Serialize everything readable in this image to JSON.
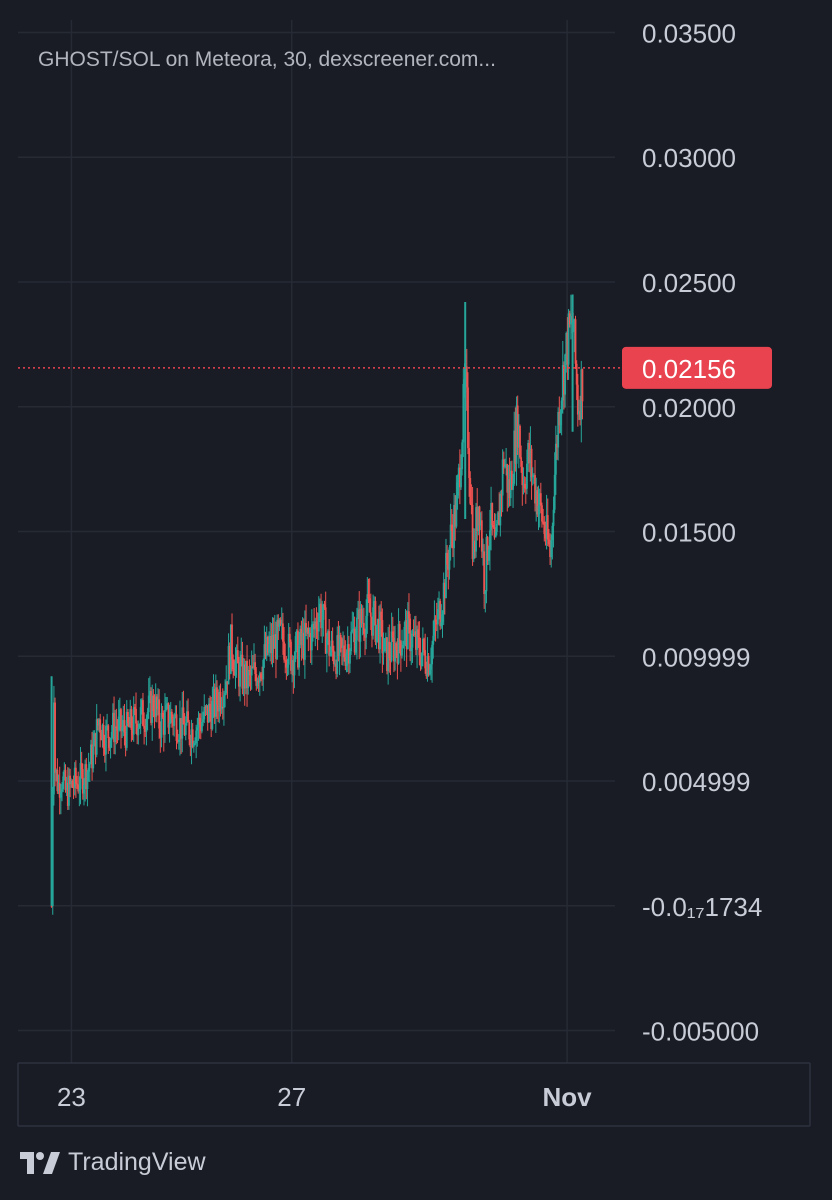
{
  "chart_data": {
    "type": "candlestick",
    "title": "GHOST/SOL on Meteora, 30, dexscreener.com...",
    "y_ticks": [
      "0.03500",
      "0.03000",
      "0.02500",
      "0.02000",
      "0.01500",
      "0.009999",
      "0.004999",
      "-0.0₁₇1734",
      "-0.005000"
    ],
    "y_tick_values": [
      0.035,
      0.03,
      0.025,
      0.02,
      0.015,
      0.01,
      0.005,
      0.0,
      -0.005
    ],
    "ylim": [
      -0.0063,
      0.0355
    ],
    "x_ticks": [
      "23",
      "27",
      "Nov"
    ],
    "x_tick_values": [
      23,
      27,
      32
    ],
    "x_highlight": "Nov",
    "xlim": [
      22.03,
      32.87
    ],
    "last_price": 0.02156,
    "last_price_label": "0.02156",
    "up_color": "#26a69a",
    "down_color": "#ef5350",
    "price_line_color": "#e8434f",
    "series_points": [
      [
        22.64,
        0.0
      ],
      [
        22.68,
        0.0092
      ],
      [
        22.7,
        0.0055
      ],
      [
        22.76,
        0.0048
      ],
      [
        22.82,
        0.0052
      ],
      [
        22.9,
        0.0045
      ],
      [
        23.0,
        0.0048
      ],
      [
        23.15,
        0.005
      ],
      [
        23.3,
        0.0055
      ],
      [
        23.4,
        0.0062
      ],
      [
        23.5,
        0.0075
      ],
      [
        23.6,
        0.0068
      ],
      [
        23.8,
        0.0072
      ],
      [
        24.0,
        0.007
      ],
      [
        24.2,
        0.0075
      ],
      [
        24.4,
        0.0078
      ],
      [
        24.5,
        0.0082
      ],
      [
        24.6,
        0.0073
      ],
      [
        24.8,
        0.0076
      ],
      [
        25.0,
        0.0072
      ],
      [
        25.2,
        0.007
      ],
      [
        25.4,
        0.0075
      ],
      [
        25.6,
        0.008
      ],
      [
        25.8,
        0.009
      ],
      [
        25.9,
        0.0105
      ],
      [
        26.0,
        0.0095
      ],
      [
        26.2,
        0.009
      ],
      [
        26.4,
        0.0095
      ],
      [
        26.6,
        0.0103
      ],
      [
        26.8,
        0.0108
      ],
      [
        27.0,
        0.01
      ],
      [
        27.2,
        0.0105
      ],
      [
        27.4,
        0.011
      ],
      [
        27.5,
        0.012
      ],
      [
        27.7,
        0.0102
      ],
      [
        27.9,
        0.01
      ],
      [
        28.0,
        0.0104
      ],
      [
        28.2,
        0.0112
      ],
      [
        28.4,
        0.0118
      ],
      [
        28.6,
        0.011
      ],
      [
        28.7,
        0.01
      ],
      [
        28.9,
        0.0105
      ],
      [
        29.1,
        0.011
      ],
      [
        29.3,
        0.0103
      ],
      [
        29.5,
        0.0099
      ],
      [
        29.6,
        0.011
      ],
      [
        29.75,
        0.0125
      ],
      [
        29.9,
        0.015
      ],
      [
        30.0,
        0.016
      ],
      [
        30.15,
        0.021
      ],
      [
        30.2,
        0.019
      ],
      [
        30.3,
        0.014
      ],
      [
        30.4,
        0.0165
      ],
      [
        30.5,
        0.013
      ],
      [
        30.6,
        0.0155
      ],
      [
        30.7,
        0.014
      ],
      [
        30.85,
        0.018
      ],
      [
        30.95,
        0.0165
      ],
      [
        31.1,
        0.0195
      ],
      [
        31.2,
        0.017
      ],
      [
        31.3,
        0.018
      ],
      [
        31.45,
        0.0165
      ],
      [
        31.6,
        0.015
      ],
      [
        31.7,
        0.014
      ],
      [
        31.75,
        0.0165
      ],
      [
        31.85,
        0.02
      ],
      [
        32.0,
        0.0225
      ],
      [
        32.1,
        0.0235
      ],
      [
        32.2,
        0.02
      ],
      [
        32.3,
        0.0215
      ]
    ]
  },
  "branding": {
    "name": "TradingView"
  }
}
